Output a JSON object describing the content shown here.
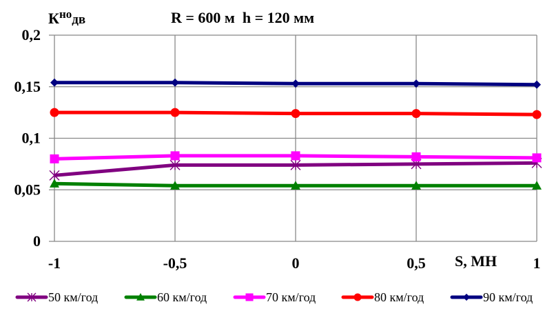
{
  "chart_data": {
    "type": "line",
    "title": "R = 600 м  h = 120 мм",
    "ylabel": {
      "main": "К",
      "sup": "но",
      "sub": "дв"
    },
    "xlabel": "S, МН",
    "xlim": [
      -1,
      1
    ],
    "ylim": [
      0,
      0.2
    ],
    "x": [
      -1,
      -0.5,
      0,
      0.5,
      1
    ],
    "x_tick_labels": [
      "-1",
      "-0,5",
      "0",
      "0,5",
      "1"
    ],
    "y_ticks": [
      0,
      0.05,
      0.1,
      0.15,
      0.2
    ],
    "y_tick_labels": [
      "0",
      "0,05",
      "0,1",
      "0,15",
      "0,2"
    ],
    "grid": true,
    "legend_position": "bottom",
    "series": [
      {
        "name": "50 км/год",
        "color": "#800080",
        "marker": "star",
        "values": [
          0.064,
          0.074,
          0.074,
          0.075,
          0.076
        ]
      },
      {
        "name": "60 км/год",
        "color": "#008000",
        "marker": "triangle",
        "values": [
          0.056,
          0.054,
          0.054,
          0.054,
          0.054
        ]
      },
      {
        "name": "70 км/год",
        "color": "#FF00FF",
        "marker": "square",
        "values": [
          0.08,
          0.083,
          0.083,
          0.082,
          0.081
        ]
      },
      {
        "name": "80 км/год",
        "color": "#FF0000",
        "marker": "circle",
        "values": [
          0.125,
          0.125,
          0.124,
          0.124,
          0.123
        ]
      },
      {
        "name": "90 км/год",
        "color": "#000080",
        "marker": "diamond",
        "values": [
          0.154,
          0.154,
          0.153,
          0.153,
          0.152
        ]
      }
    ]
  }
}
